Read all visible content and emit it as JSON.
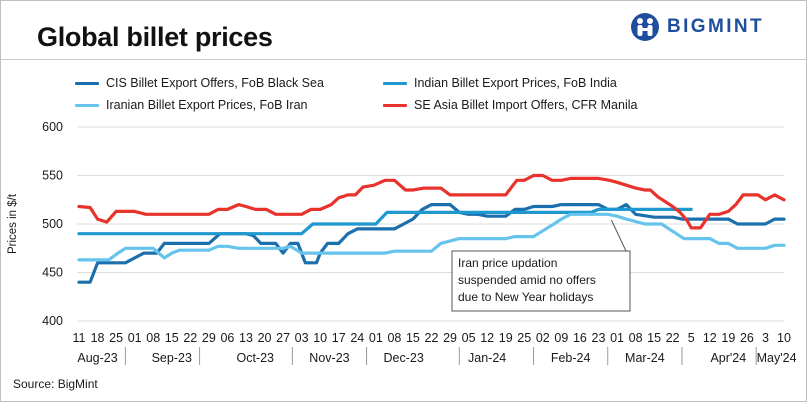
{
  "header": {
    "title": "Global billet prices",
    "brand": "BIGMINT"
  },
  "source": "Source: BigMint",
  "colors": {
    "cis": "#1b6fad",
    "india": "#1f97cf",
    "iran": "#66c4ec",
    "sea": "#e8332c",
    "grid": "#dcdcdc",
    "brand": "#1f4e9c"
  },
  "chart_data": {
    "type": "line",
    "title": "Global billet prices",
    "xlabel": "",
    "ylabel": "Prices in $/t",
    "ylim": [
      400,
      600
    ],
    "yticks": [
      400,
      450,
      500,
      550,
      600
    ],
    "grid": true,
    "legend_position": "top",
    "x_tick_labels": [
      "11",
      "18",
      "25",
      "01",
      "08",
      "15",
      "22",
      "29",
      "06",
      "13",
      "20",
      "27",
      "03",
      "10",
      "17",
      "24",
      "01",
      "08",
      "15",
      "22",
      "29",
      "05",
      "12",
      "19",
      "25",
      "02",
      "09",
      "16",
      "23",
      "01",
      "08",
      "15",
      "22",
      "5",
      "12",
      "19",
      "26",
      "3",
      "10"
    ],
    "x_tick_weeks": [
      0,
      1,
      2,
      3,
      4,
      5,
      6,
      7,
      8,
      9,
      10,
      11,
      12,
      13,
      14,
      15,
      16,
      17,
      18,
      19,
      20,
      21,
      22,
      23,
      24,
      25,
      26,
      27,
      28,
      29,
      30,
      31,
      32,
      33,
      34,
      35,
      36,
      37,
      38
    ],
    "months": [
      {
        "label": "Aug-23",
        "week": 1
      },
      {
        "label": "Sep-23",
        "week": 5
      },
      {
        "label": "Oct-23",
        "week": 9.5
      },
      {
        "label": "Nov-23",
        "week": 13.5
      },
      {
        "label": "Dec-23",
        "week": 17.5
      },
      {
        "label": "Jan-24",
        "week": 22
      },
      {
        "label": "Feb-24",
        "week": 26.5
      },
      {
        "label": "Mar-24",
        "week": 30.5
      },
      {
        "label": "Apr'24",
        "week": 35
      },
      {
        "label": "May'24",
        "week": 37.6
      }
    ],
    "annotation": {
      "lines": [
        "Iran price updation",
        "suspended amid no offers",
        "due to New Year holidays"
      ],
      "arrow_to": {
        "week": 28.7,
        "value": 504
      }
    },
    "series": [
      {
        "name": "CIS Billet Export Offers, FoB Black Sea",
        "color": "#1b6fad",
        "points": [
          [
            0,
            440
          ],
          [
            0.6,
            440
          ],
          [
            1,
            460
          ],
          [
            2.5,
            460
          ],
          [
            3.5,
            470
          ],
          [
            4.2,
            470
          ],
          [
            4.6,
            480
          ],
          [
            7,
            480
          ],
          [
            7.6,
            490
          ],
          [
            8.6,
            490
          ],
          [
            9,
            490
          ],
          [
            9.4,
            488
          ],
          [
            9.8,
            480
          ],
          [
            10.6,
            480
          ],
          [
            11,
            470
          ],
          [
            11.4,
            480
          ],
          [
            11.8,
            480
          ],
          [
            12.2,
            460
          ],
          [
            12.8,
            460
          ],
          [
            13,
            470
          ],
          [
            13.4,
            480
          ],
          [
            14,
            480
          ],
          [
            14.5,
            490
          ],
          [
            15,
            495
          ],
          [
            17,
            495
          ],
          [
            17.5,
            500
          ],
          [
            18,
            505
          ],
          [
            18.5,
            515
          ],
          [
            19,
            520
          ],
          [
            20,
            520
          ],
          [
            20.5,
            512
          ],
          [
            21,
            510
          ],
          [
            21.5,
            510
          ],
          [
            22,
            508
          ],
          [
            23,
            508
          ],
          [
            23.5,
            515
          ],
          [
            24,
            515
          ],
          [
            24.5,
            518
          ],
          [
            25.5,
            518
          ],
          [
            26,
            520
          ],
          [
            28,
            520
          ],
          [
            28.5,
            515
          ],
          [
            29,
            515
          ],
          [
            29.5,
            520
          ],
          [
            30,
            510
          ],
          [
            31,
            507
          ],
          [
            32,
            507
          ],
          [
            32.5,
            505
          ],
          [
            35,
            505
          ],
          [
            35.5,
            500
          ],
          [
            37,
            500
          ],
          [
            37.5,
            505
          ],
          [
            38,
            505
          ]
        ]
      },
      {
        "name": "Indian Billet Export Prices, FoB India",
        "color": "#1f97cf",
        "points": [
          [
            0,
            490
          ],
          [
            12,
            490
          ],
          [
            12.6,
            500
          ],
          [
            16,
            500
          ],
          [
            16.6,
            512
          ],
          [
            27.6,
            512
          ],
          [
            28,
            515
          ],
          [
            33,
            515
          ]
        ]
      },
      {
        "name": "Iranian Billet Export Prices, FoB Iran",
        "color": "#66c4ec",
        "points": [
          [
            0,
            463
          ],
          [
            1.6,
            463
          ],
          [
            2.1,
            470
          ],
          [
            2.5,
            475
          ],
          [
            4,
            475
          ],
          [
            4.6,
            465
          ],
          [
            5,
            470
          ],
          [
            5.4,
            473
          ],
          [
            7,
            473
          ],
          [
            7.5,
            477
          ],
          [
            8,
            477
          ],
          [
            8.6,
            475
          ],
          [
            11,
            475
          ],
          [
            11.4,
            477
          ],
          [
            12,
            470
          ],
          [
            12.6,
            470
          ],
          [
            16,
            470
          ],
          [
            16.5,
            470
          ],
          [
            17,
            472
          ],
          [
            19,
            472
          ],
          [
            19.5,
            480
          ],
          [
            20.5,
            485
          ],
          [
            23,
            485
          ],
          [
            23.5,
            487
          ],
          [
            24.5,
            487
          ],
          [
            25,
            493
          ],
          [
            25.6,
            500
          ],
          [
            26,
            505
          ],
          [
            26.5,
            510
          ],
          [
            28.5,
            510
          ],
          [
            29,
            508
          ],
          [
            29.5,
            505
          ],
          [
            30.5,
            500
          ],
          [
            31,
            500
          ],
          [
            31.4,
            500
          ],
          [
            31.8,
            495
          ],
          [
            32.2,
            490
          ],
          [
            32.6,
            485
          ],
          [
            34,
            485
          ],
          [
            34.5,
            480
          ],
          [
            35,
            480
          ],
          [
            35.5,
            475
          ],
          [
            37,
            475
          ],
          [
            37.5,
            478
          ],
          [
            38,
            478
          ]
        ]
      },
      {
        "name": "SE Asia Billet Import Offers, CFR Manila",
        "color": "#e8332c",
        "points": [
          [
            0,
            518
          ],
          [
            0.6,
            517
          ],
          [
            1,
            505
          ],
          [
            1.5,
            502
          ],
          [
            2,
            513
          ],
          [
            3,
            513
          ],
          [
            3.6,
            510
          ],
          [
            7,
            510
          ],
          [
            7.5,
            515
          ],
          [
            8,
            515
          ],
          [
            8.6,
            520
          ],
          [
            9,
            518
          ],
          [
            9.5,
            515
          ],
          [
            10.1,
            515
          ],
          [
            10.6,
            510
          ],
          [
            12,
            510
          ],
          [
            12.5,
            515
          ],
          [
            13,
            515
          ],
          [
            13.6,
            520
          ],
          [
            14,
            527
          ],
          [
            14.5,
            530
          ],
          [
            14.9,
            530
          ],
          [
            15.3,
            538
          ],
          [
            15.9,
            540
          ],
          [
            16.5,
            545
          ],
          [
            17,
            545
          ],
          [
            17.6,
            535
          ],
          [
            18,
            535
          ],
          [
            18.6,
            537
          ],
          [
            19.5,
            537
          ],
          [
            20,
            530
          ],
          [
            23,
            530
          ],
          [
            23.6,
            545
          ],
          [
            24,
            545
          ],
          [
            24.5,
            550
          ],
          [
            25,
            550
          ],
          [
            25.5,
            545
          ],
          [
            26,
            545
          ],
          [
            26.5,
            547
          ],
          [
            28,
            547
          ],
          [
            28.6,
            545
          ],
          [
            29,
            543
          ],
          [
            29.5,
            540
          ],
          [
            30,
            537
          ],
          [
            30.5,
            535
          ],
          [
            30.8,
            535
          ],
          [
            31.2,
            528
          ],
          [
            32,
            518
          ],
          [
            32.4,
            512
          ],
          [
            32.8,
            503
          ],
          [
            33,
            496
          ],
          [
            33.5,
            496
          ],
          [
            34,
            510
          ],
          [
            34.5,
            510
          ],
          [
            35,
            513
          ],
          [
            35.4,
            520
          ],
          [
            35.8,
            530
          ],
          [
            36.6,
            530
          ],
          [
            37,
            525
          ],
          [
            37.5,
            530
          ],
          [
            38,
            525
          ]
        ]
      }
    ]
  }
}
